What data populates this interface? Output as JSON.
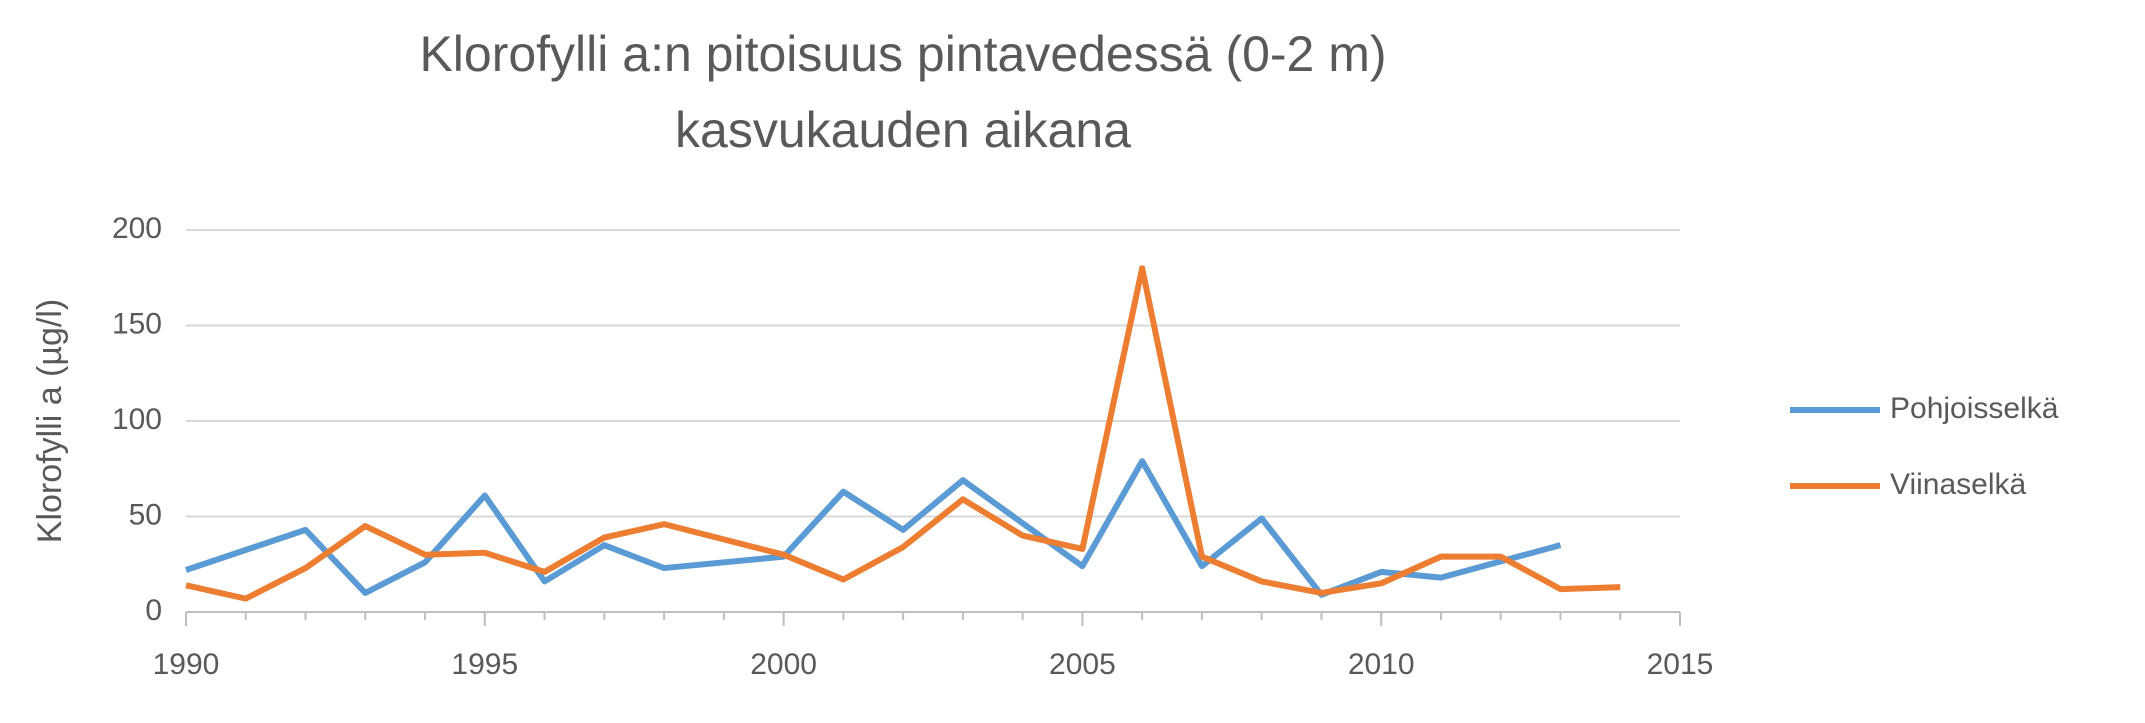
{
  "chart_data": {
    "type": "line",
    "title": [
      "Klorofylli a:n pitoisuus pintavedessä (0-2 m)",
      "kasvukauden aikana"
    ],
    "y_label": "Klorofylli a (µg/l)",
    "xlim": [
      1990,
      2015
    ],
    "xticks": [
      1990,
      1995,
      2000,
      2005,
      2010,
      2015
    ],
    "ylim": [
      0,
      200
    ],
    "yticks": [
      0,
      50,
      100,
      150,
      200
    ],
    "grid": true,
    "legend": "right",
    "series": [
      {
        "name": "Pohjoisselkä",
        "color": "#5b9bd5",
        "x": [
          1990,
          1992,
          1993,
          1994,
          1995,
          1996,
          1997,
          1998,
          2000,
          2001,
          2002,
          2003,
          2005,
          2006,
          2007,
          2008,
          2009,
          2010,
          2011,
          2013
        ],
        "values": [
          22,
          43,
          10,
          26,
          61,
          16,
          35,
          23,
          29,
          63,
          43,
          69,
          24,
          79,
          24,
          49,
          9,
          21,
          18,
          35
        ]
      },
      {
        "name": "Viinaselkä",
        "color": "#ed7d31",
        "x": [
          1990,
          1991,
          1992,
          1993,
          1994,
          1995,
          1996,
          1997,
          1998,
          2000,
          2001,
          2002,
          2003,
          2004,
          2005,
          2006,
          2007,
          2008,
          2009,
          2010,
          2011,
          2012,
          2013,
          2014
        ],
        "values": [
          14,
          7,
          23,
          45,
          30,
          31,
          21,
          39,
          46,
          30,
          17,
          34,
          59,
          40,
          33,
          180,
          29,
          16,
          10,
          15,
          29,
          29,
          12,
          13
        ]
      }
    ]
  }
}
